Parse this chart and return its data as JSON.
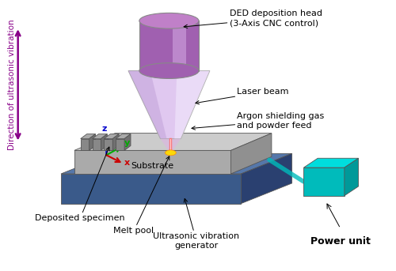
{
  "bg_color": "#ffffff",
  "labels": {
    "ded_head": "DED deposition head\n(3-Axis CNC control)",
    "laser_beam": "Laser beam",
    "argon": "Argon shielding gas\nand powder feed",
    "substrate": "Substrate",
    "deposited": "Deposited specimen",
    "melt_pool": "Melt pool",
    "ultrasonic_gen": "Ultrasonic vibration\ngenerator",
    "power_unit": "Power unit",
    "direction": "Direction of ultrasonic vibration"
  },
  "colors": {
    "ded_cylinder_top": "#c080c8",
    "ded_cylinder_side": "#a060b0",
    "ded_cone_light": "#e0c8f0",
    "ded_cone_dark": "#c0a0d8",
    "substrate_top": "#cccccc",
    "substrate_side_front": "#aaaaaa",
    "substrate_side_right": "#909090",
    "base_top": "#5577aa",
    "base_side_front": "#3a5a8a",
    "base_side_right": "#2a4070",
    "ridge_top": "#aaaaaa",
    "ridge_front": "#888888",
    "ridge_right": "#707070",
    "melt_glow": "#ffdd00",
    "power_unit_front": "#00bbbb",
    "power_unit_top": "#00dddd",
    "power_unit_right": "#009999",
    "arrow_color": "#880088",
    "axis_z": "#0000cc",
    "axis_y": "#00aa00",
    "axis_x": "#cc0000"
  }
}
